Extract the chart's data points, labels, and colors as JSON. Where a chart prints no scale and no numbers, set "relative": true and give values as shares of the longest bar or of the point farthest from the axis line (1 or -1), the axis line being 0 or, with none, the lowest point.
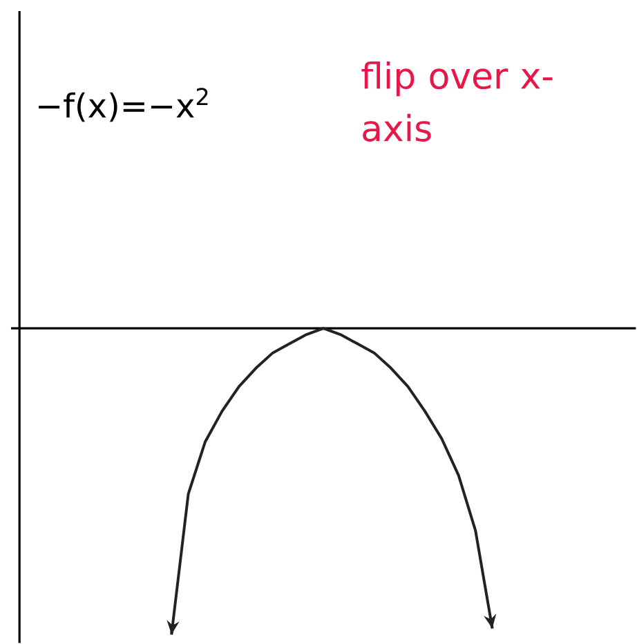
{
  "chart_data": {
    "type": "line",
    "relative": true,
    "categories": [
      null,
      null,
      null,
      null,
      null,
      null,
      null,
      null,
      null,
      null,
      null,
      null,
      null,
      null,
      null,
      null,
      null,
      null,
      null,
      null,
      null,
      null,
      null,
      null,
      null,
      null,
      null,
      null,
      null,
      null,
      null,
      null,
      null,
      null,
      null,
      null,
      null
    ],
    "values": [
      null,
      null,
      null,
      null,
      null,
      null,
      null,
      null,
      null,
      -1,
      -0.54,
      -0.37,
      -0.27,
      -0.19,
      -0.13,
      -0.08,
      -0.05,
      -0.02,
      0,
      -0.02,
      -0.05,
      -0.08,
      -0.13,
      -0.19,
      -0.27,
      -0.36,
      -0.48,
      -0.66,
      -0.98,
      null,
      null,
      null,
      null,
      null,
      null,
      null,
      null
    ],
    "color": "#222222",
    "annotations": [
      "−f(x)=−x$^{2}$",
      "flip over x-axis"
    ]
  }
}
